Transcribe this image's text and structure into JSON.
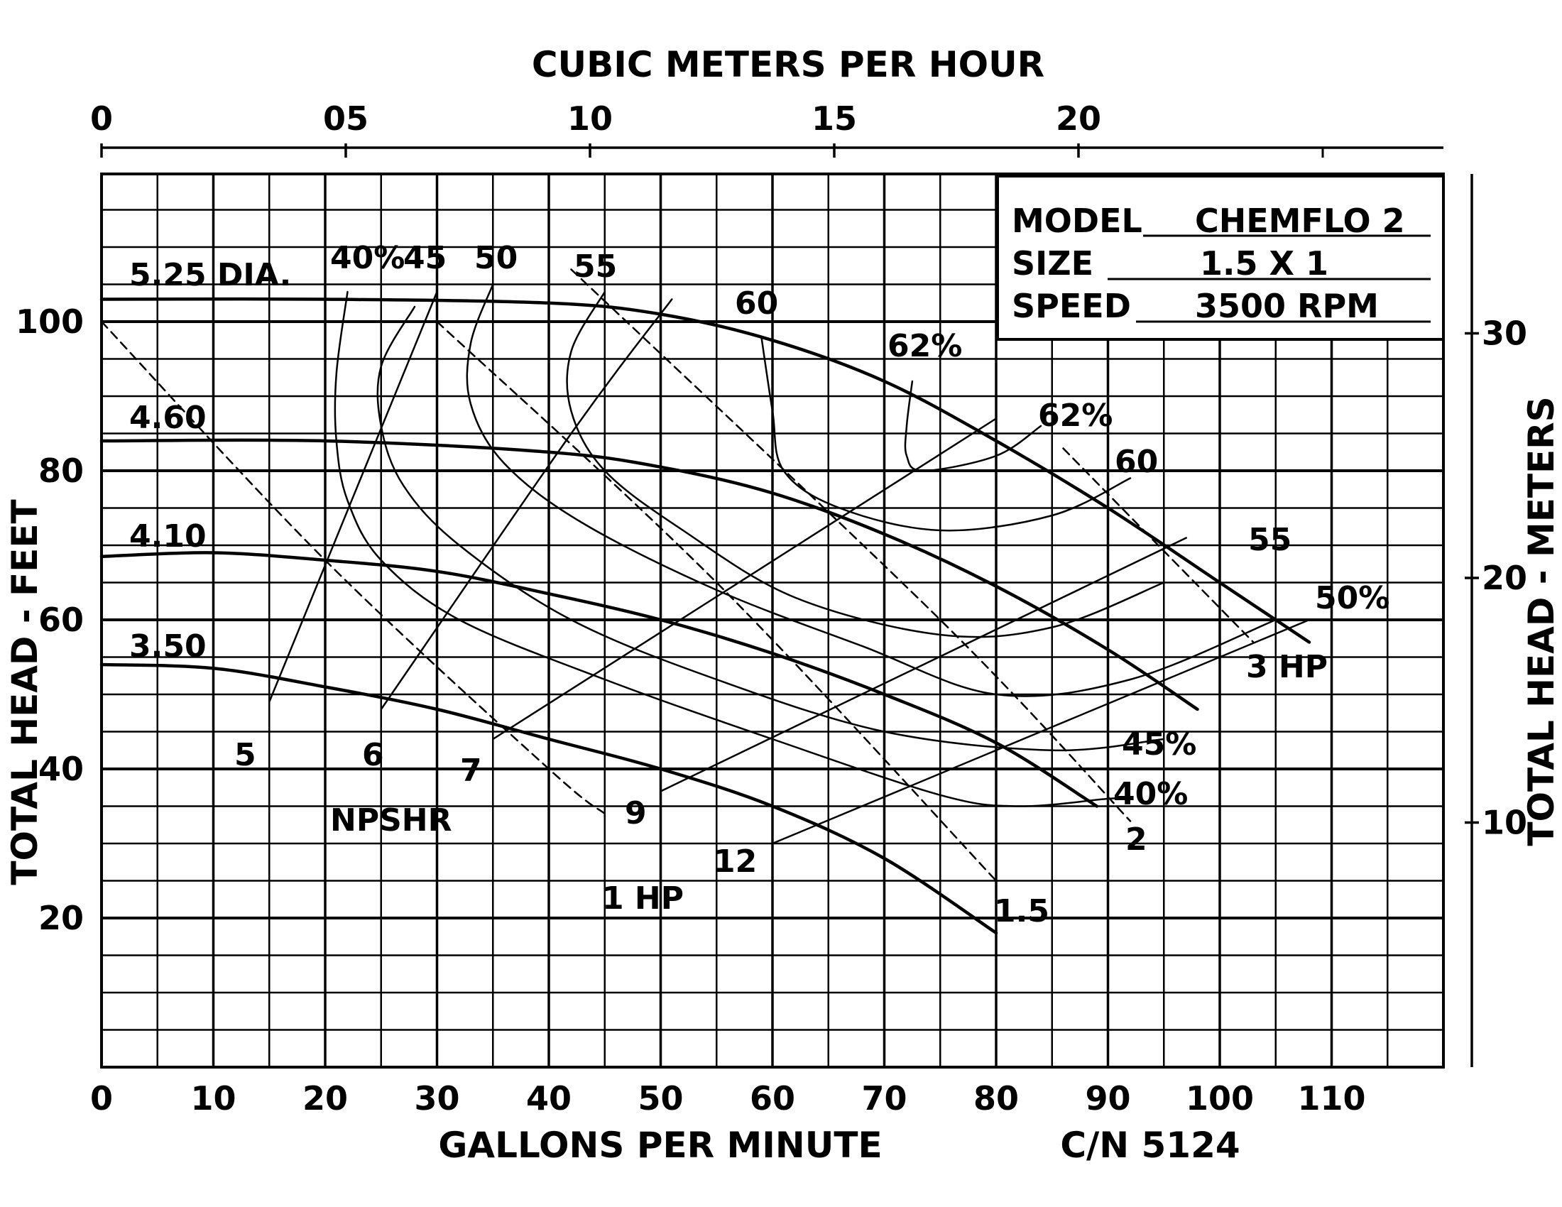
{
  "chart_data": {
    "type": "line",
    "title": "",
    "xlabel": "GALLONS PER MINUTE",
    "ylabel": "TOTAL HEAD - FEET",
    "top_xlabel": "CUBIC METERS PER HOUR",
    "right_ylabel": "TOTAL HEAD - METERS",
    "catalog_number": "C/N 5124",
    "xlim": [
      0,
      120
    ],
    "ylim": [
      0,
      120
    ],
    "x_ticks": [
      "0",
      "10",
      "20",
      "30",
      "40",
      "50",
      "60",
      "70",
      "80",
      "90",
      "100",
      "110"
    ],
    "y_ticks": [
      "20",
      "40",
      "60",
      "80",
      "100"
    ],
    "top_ticks": [
      "0",
      "05",
      "10",
      "15",
      "20"
    ],
    "right_ticks": [
      "10",
      "20",
      "30"
    ],
    "info_box": {
      "model_label": "MODEL",
      "model_value": "CHEMFLO 2",
      "size_label": "SIZE",
      "size_value": "1.5 X 1",
      "speed_label": "SPEED",
      "speed_value": "3500 RPM"
    },
    "head_curves": [
      {
        "name": "5.25 DIA.",
        "points": [
          [
            0,
            103
          ],
          [
            20,
            103
          ],
          [
            40,
            102.5
          ],
          [
            50,
            101
          ],
          [
            60,
            97.5
          ],
          [
            70,
            92
          ],
          [
            80,
            84
          ],
          [
            90,
            75
          ],
          [
            100,
            65
          ],
          [
            108,
            57
          ]
        ]
      },
      {
        "name": "4.60",
        "points": [
          [
            0,
            84
          ],
          [
            20,
            84
          ],
          [
            40,
            82.5
          ],
          [
            50,
            80.5
          ],
          [
            60,
            77
          ],
          [
            70,
            71.5
          ],
          [
            80,
            64.5
          ],
          [
            90,
            56
          ],
          [
            98,
            48
          ]
        ]
      },
      {
        "name": "4.10",
        "points": [
          [
            0,
            68.5
          ],
          [
            10,
            69
          ],
          [
            20,
            68
          ],
          [
            30,
            66.5
          ],
          [
            40,
            63.5
          ],
          [
            50,
            60
          ],
          [
            60,
            55.5
          ],
          [
            70,
            50
          ],
          [
            80,
            43.5
          ],
          [
            89,
            35
          ]
        ]
      },
      {
        "name": "3.50",
        "points": [
          [
            0,
            54
          ],
          [
            10,
            53.5
          ],
          [
            20,
            51
          ],
          [
            30,
            48
          ],
          [
            40,
            44
          ],
          [
            50,
            40
          ],
          [
            60,
            35
          ],
          [
            70,
            28
          ],
          [
            80,
            18
          ]
        ]
      }
    ],
    "efficiency_curves": [
      {
        "name": "40%",
        "points": [
          [
            22,
            104
          ],
          [
            21,
            93
          ],
          [
            21,
            84
          ],
          [
            22,
            76
          ],
          [
            25,
            68
          ],
          [
            32,
            60
          ],
          [
            45,
            52
          ],
          [
            60,
            44
          ],
          [
            75,
            36.5
          ],
          [
            82,
            35
          ],
          [
            90,
            36
          ],
          [
            92,
            36
          ]
        ]
      },
      {
        "name": "45",
        "points": [
          [
            28,
            102
          ],
          [
            25,
            94
          ],
          [
            25,
            86
          ],
          [
            27,
            78
          ],
          [
            32,
            70
          ],
          [
            42,
            60
          ],
          [
            55,
            52
          ],
          [
            70,
            45
          ],
          [
            85,
            42.5
          ],
          [
            95,
            44
          ]
        ]
      },
      {
        "name": "50",
        "points": [
          [
            35,
            105
          ],
          [
            33,
            97
          ],
          [
            33,
            89
          ],
          [
            36,
            81
          ],
          [
            43,
            73
          ],
          [
            55,
            64
          ],
          [
            68,
            56.5
          ],
          [
            80,
            50
          ],
          [
            92,
            52
          ],
          [
            105,
            60
          ]
        ]
      },
      {
        "name": "55",
        "points": [
          [
            45,
            104
          ],
          [
            42,
            96
          ],
          [
            42,
            88
          ],
          [
            45,
            80
          ],
          [
            52,
            72
          ],
          [
            62,
            63
          ],
          [
            75,
            58
          ],
          [
            85,
            59
          ],
          [
            95,
            65
          ]
        ]
      },
      {
        "name": "60",
        "points": [
          [
            59,
            98
          ],
          [
            60,
            88
          ],
          [
            61,
            80
          ],
          [
            66,
            75
          ],
          [
            75,
            72
          ],
          [
            85,
            74
          ],
          [
            92,
            79
          ]
        ]
      },
      {
        "name": "62%",
        "points": [
          [
            72.5,
            92
          ],
          [
            72,
            86
          ],
          [
            72,
            82
          ],
          [
            73.5,
            80
          ],
          [
            80,
            82
          ],
          [
            84,
            86
          ]
        ]
      }
    ],
    "hp_curves": [
      {
        "name": "1 HP",
        "points": [
          [
            0,
            100
          ],
          [
            20,
            68
          ],
          [
            40,
            40
          ],
          [
            45,
            34
          ]
        ]
      },
      {
        "name": "1.5",
        "points": [
          [
            30,
            100
          ],
          [
            55,
            65
          ],
          [
            80,
            25
          ]
        ]
      },
      {
        "name": "2",
        "points": [
          [
            42,
            107
          ],
          [
            75,
            60
          ],
          [
            92,
            33
          ]
        ]
      },
      {
        "name": "3 HP",
        "points": [
          [
            86,
            83
          ],
          [
            103,
            57
          ]
        ]
      }
    ],
    "npshr_curves": [
      {
        "name": "5",
        "points": [
          [
            15,
            49
          ],
          [
            30,
            104
          ]
        ]
      },
      {
        "name": "6",
        "points": [
          [
            25,
            48
          ],
          [
            42,
            85
          ],
          [
            51,
            103
          ]
        ]
      },
      {
        "name": "7",
        "points": [
          [
            35,
            44
          ],
          [
            80,
            87
          ]
        ]
      },
      {
        "name": "9",
        "points": [
          [
            50,
            37
          ],
          [
            97,
            71
          ]
        ]
      },
      {
        "name": "12",
        "points": [
          [
            60,
            30
          ],
          [
            108,
            60
          ]
        ]
      }
    ],
    "npshr_label": "NPSHR"
  }
}
